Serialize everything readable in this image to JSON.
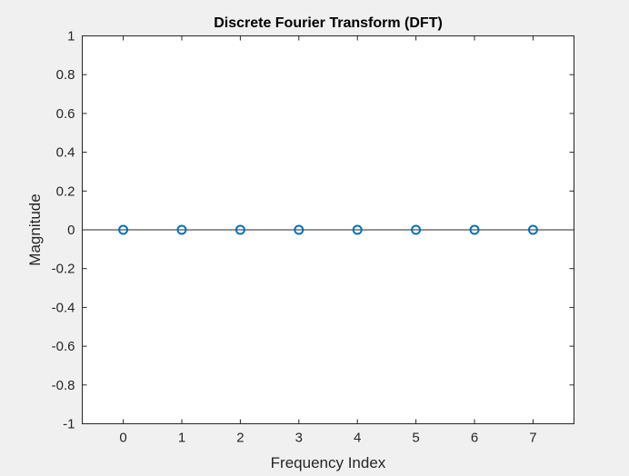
{
  "figure": {
    "background": "#f0f0f0",
    "axes_background": "#ffffff",
    "axes_color": "#262626"
  },
  "chart_data": {
    "type": "scatter",
    "subtype": "stem",
    "title": "Discrete Fourier Transform (DFT)",
    "xlabel": "Frequency Index",
    "ylabel": "Magnitude",
    "xlim": [
      -0.7,
      7.7
    ],
    "ylim": [
      -1,
      1
    ],
    "xticks": [
      0,
      1,
      2,
      3,
      4,
      5,
      6,
      7
    ],
    "xtick_labels": [
      "0",
      "1",
      "2",
      "3",
      "4",
      "5",
      "6",
      "7"
    ],
    "yticks": [
      -1,
      -0.8,
      -0.6,
      -0.4,
      -0.2,
      0,
      0.2,
      0.4,
      0.6,
      0.8,
      1
    ],
    "ytick_labels": [
      "-1",
      "-0.8",
      "-0.6",
      "-0.4",
      "-0.2",
      "0",
      "0.2",
      "0.4",
      "0.6",
      "0.8",
      "1"
    ],
    "baseline": 0,
    "grid": false,
    "box": true,
    "marker": "circle-open",
    "series": [
      {
        "color": "#0072bd",
        "x": [
          0,
          1,
          2,
          3,
          4,
          5,
          6,
          7
        ],
        "y": [
          0,
          0,
          0,
          0,
          0,
          0,
          0,
          0
        ]
      }
    ]
  }
}
